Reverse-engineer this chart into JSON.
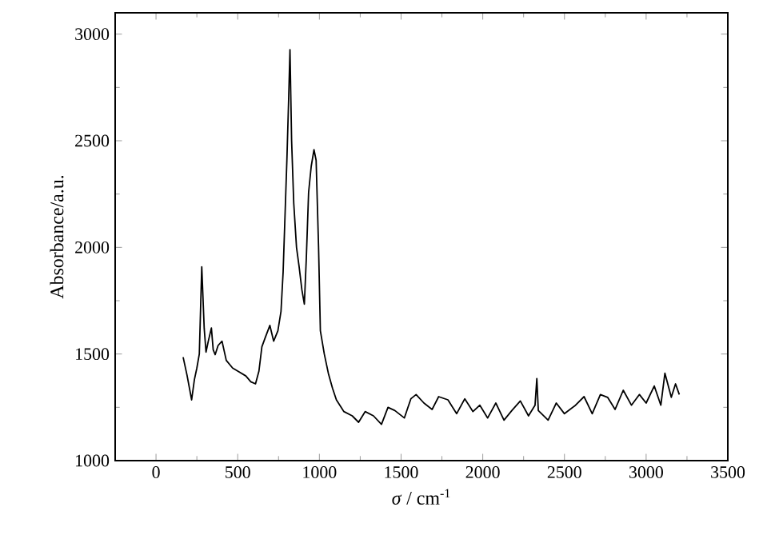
{
  "chart_data": {
    "type": "line",
    "xlabel": "*σ* / cm$^{-1}$",
    "ylabel": "Absorbance/a.u.",
    "xlim": [
      -250,
      3500
    ],
    "xticks": [
      0,
      500,
      1000,
      1500,
      2000,
      2500,
      3000,
      3500
    ],
    "ylim": [
      1000,
      3100
    ],
    "yticks": [
      1000,
      1500,
      2000,
      2500,
      3000
    ],
    "grid": false,
    "marker": "none",
    "line_style": "solid",
    "series": [
      {
        "color": "#000000",
        "x": [
          166,
          190,
          218,
          235,
          250,
          265,
          280,
          295,
          306,
          320,
          339,
          350,
          362,
          380,
          404,
          430,
          469,
          500,
          550,
          580,
          609,
          630,
          648,
          670,
          697,
          720,
          746,
          765,
          778,
          801,
          812,
          820,
          830,
          843,
          860,
          876,
          893,
          908,
          920,
          934,
          950,
          967,
          980,
          995,
          1006,
          1030,
          1055,
          1080,
          1104,
          1150,
          1201,
          1240,
          1280,
          1331,
          1380,
          1420,
          1462,
          1520,
          1560,
          1592,
          1640,
          1690,
          1730,
          1787,
          1840,
          1890,
          1940,
          1982,
          2030,
          2080,
          2130,
          2178,
          2230,
          2280,
          2320,
          2331,
          2340,
          2400,
          2450,
          2500,
          2568,
          2620,
          2670,
          2720,
          2764,
          2810,
          2860,
          2910,
          2959,
          3000,
          3050,
          3090,
          3115,
          3154,
          3180,
          3203
        ],
        "values": [
          1485,
          1400,
          1285,
          1380,
          1434,
          1500,
          1909,
          1620,
          1509,
          1560,
          1622,
          1520,
          1497,
          1540,
          1560,
          1470,
          1434,
          1420,
          1397,
          1370,
          1360,
          1420,
          1534,
          1580,
          1634,
          1560,
          1609,
          1700,
          1884,
          2408,
          2700,
          2927,
          2500,
          2208,
          2000,
          1909,
          1800,
          1734,
          1950,
          2258,
          2380,
          2458,
          2408,
          2000,
          1609,
          1500,
          1409,
          1340,
          1285,
          1230,
          1210,
          1180,
          1230,
          1210,
          1170,
          1250,
          1235,
          1200,
          1290,
          1310,
          1270,
          1240,
          1300,
          1285,
          1220,
          1290,
          1230,
          1260,
          1200,
          1270,
          1190,
          1235,
          1280,
          1210,
          1260,
          1385,
          1235,
          1190,
          1270,
          1220,
          1260,
          1300,
          1220,
          1310,
          1297,
          1240,
          1330,
          1260,
          1310,
          1270,
          1350,
          1260,
          1410,
          1297,
          1360,
          1310
        ]
      }
    ]
  }
}
